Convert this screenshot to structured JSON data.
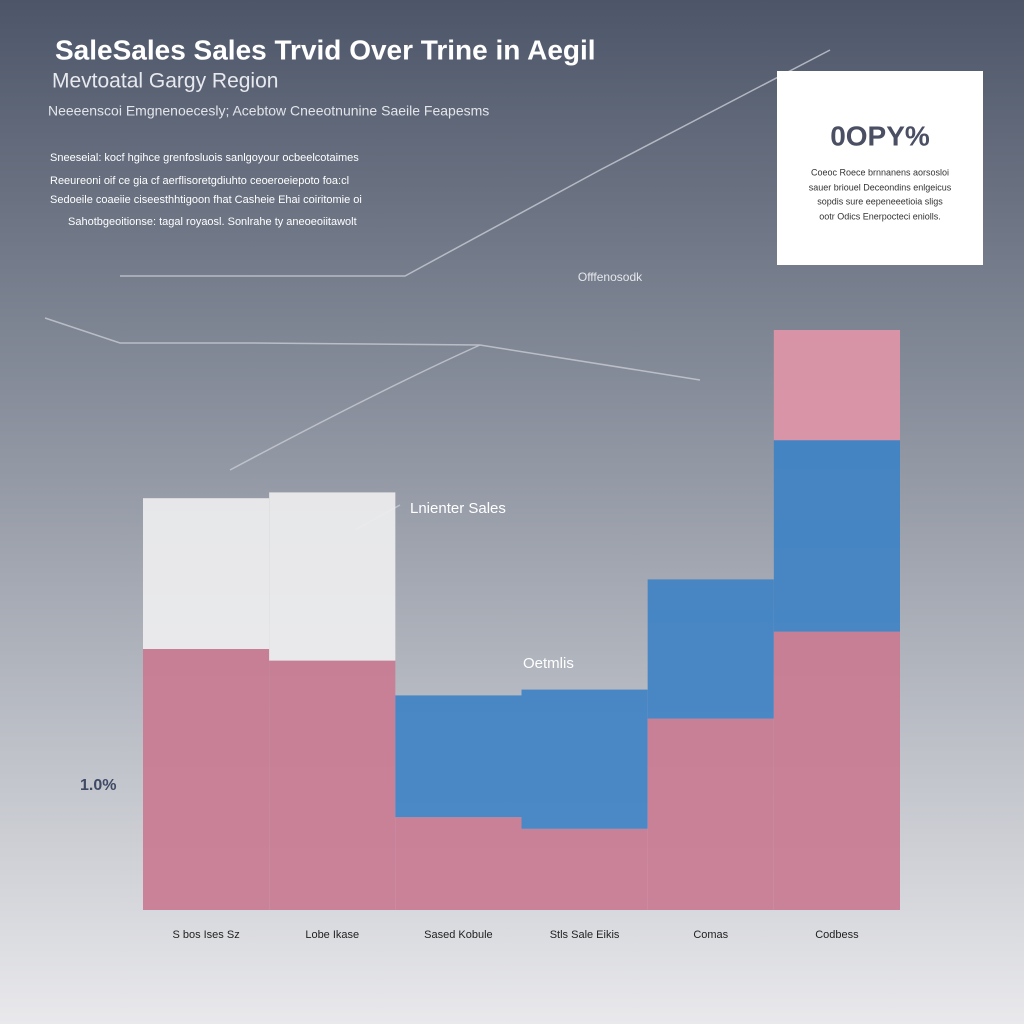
{
  "chart_data": {
    "type": "bar",
    "title": "SaleSales Sales Trvid Over Trine  in Aegil",
    "subtitle": "Mevtoatal Gargy Region",
    "caption": "Neeeenscoi Emgnenoecesly; Acebtow Cneeotnunine Saeile Feapesms",
    "description": [
      "Sneeseial: kocf hgihce grenfosluois sanlgoyour ocbeelcotaimes",
      "Reeureoni oif ce gia cf aerflisoretgdiuhto ceoeroeiepoto foa:cl",
      "Sedoeile coaeiie ciseesthhtigoon fhat Casheie Ehai coiritomie oi",
      "Sahotbgeoitionse: tagal royaosl. Sonlrahe ty aneoeoiitawolt"
    ],
    "callout": {
      "headline": "0OPY%",
      "lines": [
        "Coeoc Roece brnnanens aorsosloi",
        "sauer briouel Deceondins enlgeicus",
        "sopdis sure eepeneeetioia sligs",
        "ootr Odics Enerpocteci eniolls."
      ]
    },
    "annotations": [
      "Offfenosodk",
      "Lnienter Sales",
      "Oetmlis",
      "1.0%"
    ],
    "categories": [
      "S bos Ises Sz",
      "Lobe Ikase",
      "Sased Kobule",
      "Stls Sale Eikis",
      "Comas",
      "Codbess"
    ],
    "series": [
      {
        "color": "#c97b93",
        "values": [
          45,
          43,
          16,
          14,
          33,
          48
        ]
      },
      {
        "color": "#eeeeef",
        "values": [
          26,
          29,
          null,
          null,
          null,
          null
        ]
      },
      {
        "color": "#3f82c4",
        "values": [
          null,
          null,
          21,
          24,
          24,
          33
        ]
      },
      {
        "color": "#df95a8",
        "values": [
          null,
          null,
          null,
          null,
          null,
          19
        ]
      }
    ],
    "ylim": [
      0,
      100
    ]
  }
}
